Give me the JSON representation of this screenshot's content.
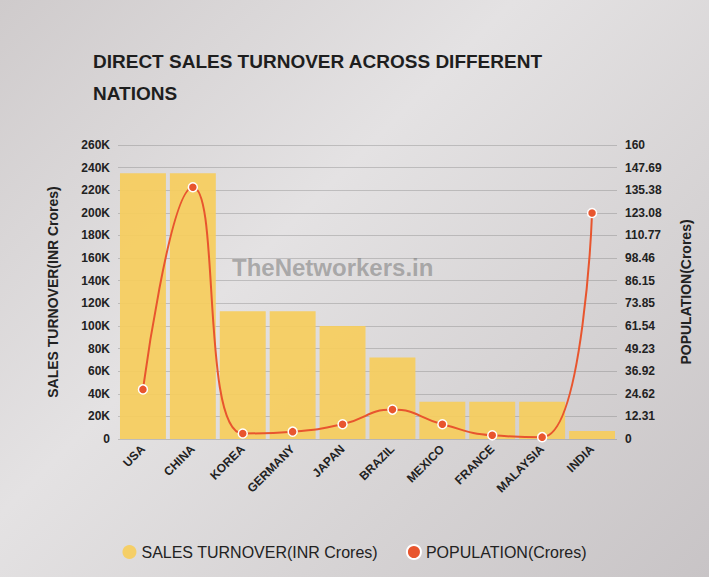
{
  "chart_data": {
    "type": "bar",
    "title": "DIRECT SALES TURNOVER ACROSS DIFFERENT NATIONS",
    "annotations": [
      "TheNetworkers.in"
    ],
    "categories": [
      "USA",
      "CHINA",
      "KOREA",
      "GERMANY",
      "JAPAN",
      "BRAZIL",
      "MEXICO",
      "FRANCE",
      "MALAYSIA",
      "INDIA"
    ],
    "y_label": "SALES TURNOVER(INR Crores)",
    "y2_label": "POPULATION(Crores)",
    "series": [
      {
        "name": "SALES TURNOVER(INR Crores)",
        "type": "bar",
        "color": "#f6cd5c",
        "values": [
          235000,
          235000,
          113000,
          113000,
          100000,
          72000,
          33000,
          33000,
          33000,
          7000
        ]
      },
      {
        "name": "POPULATION(Crores)",
        "type": "line",
        "axis": "y2",
        "color": "#e8552e",
        "marker": "circle",
        "line_style": "solid",
        "values": [
          27,
          137,
          3,
          4,
          8,
          16,
          8,
          2,
          1,
          123
        ]
      }
    ],
    "ylim": [
      0,
      260000
    ],
    "yticks": [
      0,
      {
        "value": 20000,
        "label": "20K"
      },
      {
        "value": 40000,
        "label": "40K"
      },
      {
        "value": 60000,
        "label": "60K"
      },
      {
        "value": 80000,
        "label": "80K"
      },
      {
        "value": 100000,
        "label": "100K"
      },
      {
        "value": 120000,
        "label": "120K"
      },
      {
        "value": 140000,
        "label": "140K"
      },
      {
        "value": 160000,
        "label": "160K"
      },
      {
        "value": 180000,
        "label": "180K"
      },
      {
        "value": 200000,
        "label": "200K"
      },
      {
        "value": 220000,
        "label": "220K"
      },
      {
        "value": 240000,
        "label": "240K"
      },
      {
        "value": 260000,
        "label": "260K"
      }
    ],
    "y2lim": [
      0,
      160
    ],
    "y2ticks": [
      0,
      12.31,
      24.62,
      36.92,
      49.23,
      61.54,
      73.85,
      86.15,
      98.46,
      110.77,
      123.08,
      135.38,
      147.69,
      160
    ],
    "grid": true,
    "legend": "bottom"
  }
}
